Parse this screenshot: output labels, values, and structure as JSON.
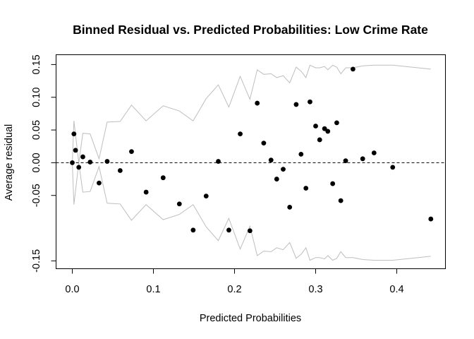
{
  "chart_data": {
    "type": "scatter",
    "title": "Binned Residual vs. Predicted Probabilities: Low Crime Rate",
    "xlabel": "Predicted Probabilities",
    "ylabel": "Average residual",
    "xlim": [
      -0.02,
      0.46
    ],
    "ylim": [
      -0.162,
      0.165
    ],
    "x_ticks": [
      0.0,
      0.1,
      0.2,
      0.3,
      0.4
    ],
    "x_tick_labels": [
      "0.0",
      "0.1",
      "0.2",
      "0.3",
      "0.4"
    ],
    "y_ticks": [
      -0.15,
      -0.05,
      0.0,
      0.05,
      0.1,
      0.15
    ],
    "y_tick_labels": [
      "-0.15",
      "-0.05",
      "0.00",
      "0.05",
      "0.10",
      "0.15"
    ],
    "reference_line_y": 0,
    "colors": {
      "points": "#000000",
      "bands": "#bebebe",
      "reference": "#000000"
    },
    "points": [
      {
        "x": 0.0,
        "y": 0.0
      },
      {
        "x": 0.002,
        "y": 0.044
      },
      {
        "x": 0.004,
        "y": 0.019
      },
      {
        "x": 0.008,
        "y": -0.007
      },
      {
        "x": 0.013,
        "y": 0.009
      },
      {
        "x": 0.022,
        "y": 0.001
      },
      {
        "x": 0.033,
        "y": -0.031
      },
      {
        "x": 0.043,
        "y": 0.002
      },
      {
        "x": 0.059,
        "y": -0.012
      },
      {
        "x": 0.073,
        "y": 0.017
      },
      {
        "x": 0.091,
        "y": -0.045
      },
      {
        "x": 0.112,
        "y": -0.023
      },
      {
        "x": 0.132,
        "y": -0.063
      },
      {
        "x": 0.149,
        "y": -0.103
      },
      {
        "x": 0.165,
        "y": -0.051
      },
      {
        "x": 0.18,
        "y": 0.002
      },
      {
        "x": 0.193,
        "y": -0.103
      },
      {
        "x": 0.207,
        "y": 0.044
      },
      {
        "x": 0.219,
        "y": -0.104
      },
      {
        "x": 0.228,
        "y": 0.091
      },
      {
        "x": 0.236,
        "y": 0.03
      },
      {
        "x": 0.245,
        "y": 0.004
      },
      {
        "x": 0.252,
        "y": -0.025
      },
      {
        "x": 0.26,
        "y": -0.01
      },
      {
        "x": 0.268,
        "y": -0.068
      },
      {
        "x": 0.276,
        "y": 0.089
      },
      {
        "x": 0.282,
        "y": 0.013
      },
      {
        "x": 0.288,
        "y": -0.039
      },
      {
        "x": 0.293,
        "y": 0.093
      },
      {
        "x": 0.3,
        "y": 0.056
      },
      {
        "x": 0.305,
        "y": 0.035
      },
      {
        "x": 0.311,
        "y": 0.052
      },
      {
        "x": 0.315,
        "y": 0.048
      },
      {
        "x": 0.321,
        "y": -0.032
      },
      {
        "x": 0.326,
        "y": 0.061
      },
      {
        "x": 0.331,
        "y": -0.058
      },
      {
        "x": 0.337,
        "y": 0.003
      },
      {
        "x": 0.346,
        "y": 0.143
      },
      {
        "x": 0.358,
        "y": 0.006
      },
      {
        "x": 0.372,
        "y": 0.015
      },
      {
        "x": 0.395,
        "y": -0.007
      },
      {
        "x": 0.442,
        "y": -0.086
      }
    ],
    "upper_band": [
      {
        "x": 0.0,
        "y": 0.0
      },
      {
        "x": 0.002,
        "y": 0.064
      },
      {
        "x": 0.008,
        "y": 0.0
      },
      {
        "x": 0.013,
        "y": 0.045
      },
      {
        "x": 0.022,
        "y": 0.044
      },
      {
        "x": 0.033,
        "y": 0.006
      },
      {
        "x": 0.043,
        "y": 0.062
      },
      {
        "x": 0.059,
        "y": 0.063
      },
      {
        "x": 0.073,
        "y": 0.088
      },
      {
        "x": 0.091,
        "y": 0.064
      },
      {
        "x": 0.112,
        "y": 0.087
      },
      {
        "x": 0.132,
        "y": 0.079
      },
      {
        "x": 0.149,
        "y": 0.064
      },
      {
        "x": 0.165,
        "y": 0.098
      },
      {
        "x": 0.18,
        "y": 0.119
      },
      {
        "x": 0.193,
        "y": 0.085
      },
      {
        "x": 0.207,
        "y": 0.132
      },
      {
        "x": 0.219,
        "y": 0.097
      },
      {
        "x": 0.228,
        "y": 0.142
      },
      {
        "x": 0.236,
        "y": 0.135
      },
      {
        "x": 0.245,
        "y": 0.136
      },
      {
        "x": 0.252,
        "y": 0.13
      },
      {
        "x": 0.26,
        "y": 0.133
      },
      {
        "x": 0.268,
        "y": 0.122
      },
      {
        "x": 0.276,
        "y": 0.146
      },
      {
        "x": 0.282,
        "y": 0.14
      },
      {
        "x": 0.288,
        "y": 0.13
      },
      {
        "x": 0.293,
        "y": 0.149
      },
      {
        "x": 0.3,
        "y": 0.145
      },
      {
        "x": 0.305,
        "y": 0.145
      },
      {
        "x": 0.311,
        "y": 0.147
      },
      {
        "x": 0.315,
        "y": 0.142
      },
      {
        "x": 0.321,
        "y": 0.149
      },
      {
        "x": 0.326,
        "y": 0.146
      },
      {
        "x": 0.331,
        "y": 0.136
      },
      {
        "x": 0.337,
        "y": 0.145
      },
      {
        "x": 0.346,
        "y": 0.145
      },
      {
        "x": 0.358,
        "y": 0.148
      },
      {
        "x": 0.372,
        "y": 0.149
      },
      {
        "x": 0.395,
        "y": 0.149
      },
      {
        "x": 0.442,
        "y": 0.143
      }
    ],
    "lower_band": [
      {
        "x": 0.0,
        "y": 0.0
      },
      {
        "x": 0.002,
        "y": -0.064
      },
      {
        "x": 0.008,
        "y": 0.0
      },
      {
        "x": 0.013,
        "y": -0.045
      },
      {
        "x": 0.022,
        "y": -0.044
      },
      {
        "x": 0.033,
        "y": -0.006
      },
      {
        "x": 0.043,
        "y": -0.062
      },
      {
        "x": 0.059,
        "y": -0.063
      },
      {
        "x": 0.073,
        "y": -0.088
      },
      {
        "x": 0.091,
        "y": -0.064
      },
      {
        "x": 0.112,
        "y": -0.087
      },
      {
        "x": 0.132,
        "y": -0.079
      },
      {
        "x": 0.149,
        "y": -0.064
      },
      {
        "x": 0.165,
        "y": -0.098
      },
      {
        "x": 0.18,
        "y": -0.119
      },
      {
        "x": 0.193,
        "y": -0.085
      },
      {
        "x": 0.207,
        "y": -0.132
      },
      {
        "x": 0.219,
        "y": -0.097
      },
      {
        "x": 0.228,
        "y": -0.142
      },
      {
        "x": 0.236,
        "y": -0.135
      },
      {
        "x": 0.245,
        "y": -0.136
      },
      {
        "x": 0.252,
        "y": -0.13
      },
      {
        "x": 0.26,
        "y": -0.133
      },
      {
        "x": 0.268,
        "y": -0.122
      },
      {
        "x": 0.276,
        "y": -0.146
      },
      {
        "x": 0.282,
        "y": -0.14
      },
      {
        "x": 0.288,
        "y": -0.13
      },
      {
        "x": 0.293,
        "y": -0.149
      },
      {
        "x": 0.3,
        "y": -0.145
      },
      {
        "x": 0.305,
        "y": -0.145
      },
      {
        "x": 0.311,
        "y": -0.147
      },
      {
        "x": 0.315,
        "y": -0.142
      },
      {
        "x": 0.321,
        "y": -0.149
      },
      {
        "x": 0.326,
        "y": -0.146
      },
      {
        "x": 0.331,
        "y": -0.136
      },
      {
        "x": 0.337,
        "y": -0.145
      },
      {
        "x": 0.346,
        "y": -0.145
      },
      {
        "x": 0.358,
        "y": -0.148
      },
      {
        "x": 0.372,
        "y": -0.149
      },
      {
        "x": 0.395,
        "y": -0.149
      },
      {
        "x": 0.442,
        "y": -0.143
      }
    ]
  }
}
